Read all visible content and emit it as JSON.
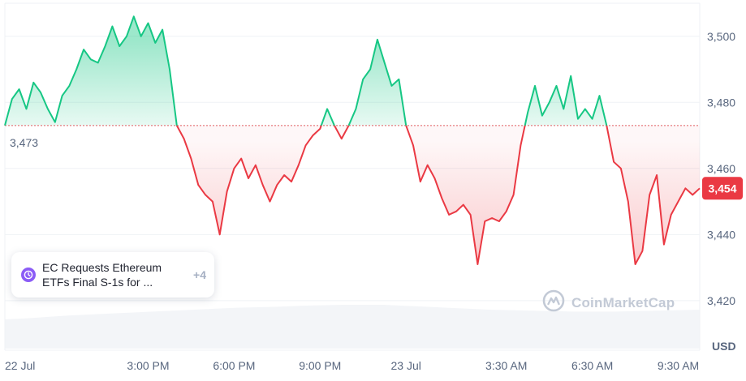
{
  "chart_data": {
    "type": "line",
    "title": "",
    "xlabel": "",
    "ylabel": "USD",
    "baseline": 3473,
    "baseline_label": "3,473",
    "current_value": 3454,
    "current_label": "3,454",
    "ylim": [
      3405,
      3510
    ],
    "y_ticks": [
      {
        "value": 3420,
        "label": "3,420"
      },
      {
        "value": 3440,
        "label": "3,440"
      },
      {
        "value": 3460,
        "label": "3,460"
      },
      {
        "value": 3480,
        "label": "3,480"
      },
      {
        "value": 3500,
        "label": "3,500"
      }
    ],
    "x_range": [
      "2024-07-22T10:00",
      "2024-07-23T10:15"
    ],
    "x_ticks": [
      {
        "value": "2024-07-22T10:00",
        "label": "22 Jul"
      },
      {
        "value": "2024-07-22T15:00",
        "label": "3:00 PM"
      },
      {
        "value": "2024-07-22T18:00",
        "label": "6:00 PM"
      },
      {
        "value": "2024-07-22T21:00",
        "label": "9:00 PM"
      },
      {
        "value": "2024-07-23T00:00",
        "label": "23 Jul"
      },
      {
        "value": "2024-07-23T03:30",
        "label": "3:30 AM"
      },
      {
        "value": "2024-07-23T06:30",
        "label": "6:30 AM"
      },
      {
        "value": "2024-07-23T09:30",
        "label": "9:30 AM"
      }
    ],
    "series": [
      {
        "values": [
          [
            "2024-07-22T10:00",
            3473
          ],
          [
            "2024-07-22T10:15",
            3481
          ],
          [
            "2024-07-22T10:30",
            3484
          ],
          [
            "2024-07-22T10:45",
            3478
          ],
          [
            "2024-07-22T11:00",
            3486
          ],
          [
            "2024-07-22T11:15",
            3483
          ],
          [
            "2024-07-22T11:30",
            3478
          ],
          [
            "2024-07-22T11:45",
            3474
          ],
          [
            "2024-07-22T12:00",
            3482
          ],
          [
            "2024-07-22T12:15",
            3485
          ],
          [
            "2024-07-22T12:30",
            3490
          ],
          [
            "2024-07-22T12:45",
            3496
          ],
          [
            "2024-07-22T13:00",
            3493
          ],
          [
            "2024-07-22T13:15",
            3492
          ],
          [
            "2024-07-22T13:30",
            3497
          ],
          [
            "2024-07-22T13:45",
            3503
          ],
          [
            "2024-07-22T14:00",
            3497
          ],
          [
            "2024-07-22T14:15",
            3500
          ],
          [
            "2024-07-22T14:30",
            3506
          ],
          [
            "2024-07-22T14:45",
            3500
          ],
          [
            "2024-07-22T15:00",
            3504
          ],
          [
            "2024-07-22T15:15",
            3498
          ],
          [
            "2024-07-22T15:30",
            3502
          ],
          [
            "2024-07-22T15:45",
            3490
          ],
          [
            "2024-07-22T16:00",
            3473
          ],
          [
            "2024-07-22T16:15",
            3469
          ],
          [
            "2024-07-22T16:30",
            3463
          ],
          [
            "2024-07-22T16:45",
            3455
          ],
          [
            "2024-07-22T17:00",
            3452
          ],
          [
            "2024-07-22T17:15",
            3450
          ],
          [
            "2024-07-22T17:30",
            3440
          ],
          [
            "2024-07-22T17:45",
            3453
          ],
          [
            "2024-07-22T18:00",
            3460
          ],
          [
            "2024-07-22T18:15",
            3463
          ],
          [
            "2024-07-22T18:30",
            3457
          ],
          [
            "2024-07-22T18:45",
            3461
          ],
          [
            "2024-07-22T19:00",
            3455
          ],
          [
            "2024-07-22T19:15",
            3450
          ],
          [
            "2024-07-22T19:30",
            3455
          ],
          [
            "2024-07-22T19:45",
            3458
          ],
          [
            "2024-07-22T20:00",
            3456
          ],
          [
            "2024-07-22T20:15",
            3461
          ],
          [
            "2024-07-22T20:30",
            3467
          ],
          [
            "2024-07-22T20:45",
            3470
          ],
          [
            "2024-07-22T21:00",
            3472
          ],
          [
            "2024-07-22T21:15",
            3478
          ],
          [
            "2024-07-22T21:30",
            3473
          ],
          [
            "2024-07-22T21:45",
            3469
          ],
          [
            "2024-07-22T22:00",
            3473
          ],
          [
            "2024-07-22T22:15",
            3478
          ],
          [
            "2024-07-22T22:30",
            3487
          ],
          [
            "2024-07-22T22:45",
            3490
          ],
          [
            "2024-07-22T23:00",
            3499
          ],
          [
            "2024-07-22T23:15",
            3492
          ],
          [
            "2024-07-22T23:30",
            3485
          ],
          [
            "2024-07-22T23:45",
            3487
          ],
          [
            "2024-07-23T00:00",
            3473
          ],
          [
            "2024-07-23T00:15",
            3467
          ],
          [
            "2024-07-23T00:30",
            3456
          ],
          [
            "2024-07-23T00:45",
            3461
          ],
          [
            "2024-07-23T01:00",
            3457
          ],
          [
            "2024-07-23T01:15",
            3451
          ],
          [
            "2024-07-23T01:30",
            3446
          ],
          [
            "2024-07-23T01:45",
            3447
          ],
          [
            "2024-07-23T02:00",
            3449
          ],
          [
            "2024-07-23T02:15",
            3446
          ],
          [
            "2024-07-23T02:30",
            3431
          ],
          [
            "2024-07-23T02:45",
            3444
          ],
          [
            "2024-07-23T03:00",
            3445
          ],
          [
            "2024-07-23T03:15",
            3444
          ],
          [
            "2024-07-23T03:30",
            3447
          ],
          [
            "2024-07-23T03:45",
            3452
          ],
          [
            "2024-07-23T04:00",
            3467
          ],
          [
            "2024-07-23T04:15",
            3477
          ],
          [
            "2024-07-23T04:30",
            3485
          ],
          [
            "2024-07-23T04:45",
            3476
          ],
          [
            "2024-07-23T05:00",
            3480
          ],
          [
            "2024-07-23T05:15",
            3485
          ],
          [
            "2024-07-23T05:30",
            3478
          ],
          [
            "2024-07-23T05:45",
            3488
          ],
          [
            "2024-07-23T06:00",
            3475
          ],
          [
            "2024-07-23T06:15",
            3478
          ],
          [
            "2024-07-23T06:30",
            3475
          ],
          [
            "2024-07-23T06:45",
            3482
          ],
          [
            "2024-07-23T07:00",
            3473
          ],
          [
            "2024-07-23T07:15",
            3462
          ],
          [
            "2024-07-23T07:30",
            3460
          ],
          [
            "2024-07-23T07:45",
            3450
          ],
          [
            "2024-07-23T08:00",
            3431
          ],
          [
            "2024-07-23T08:15",
            3435
          ],
          [
            "2024-07-23T08:30",
            3452
          ],
          [
            "2024-07-23T08:45",
            3458
          ],
          [
            "2024-07-23T09:00",
            3437
          ],
          [
            "2024-07-23T09:15",
            3446
          ],
          [
            "2024-07-23T09:30",
            3450
          ],
          [
            "2024-07-23T09:45",
            3454
          ],
          [
            "2024-07-23T10:00",
            3452
          ],
          [
            "2024-07-23T10:15",
            3454
          ]
        ]
      }
    ],
    "volume": [
      0.6,
      0.62,
      0.65,
      0.68,
      0.7,
      0.72,
      0.74,
      0.76,
      0.78,
      0.8,
      0.82,
      0.84,
      0.85,
      0.86,
      0.88,
      0.89,
      0.9,
      0.9,
      0.9,
      0.88,
      0.86,
      0.84,
      0.82,
      0.8,
      0.79,
      0.78,
      0.77,
      0.76,
      0.76,
      0.76,
      0.77,
      0.78,
      0.79,
      0.8
    ],
    "grid": true,
    "up_color": "#16c784",
    "down_color": "#ea3943"
  },
  "news": {
    "line1": "EC Requests Ethereum",
    "line2": "ETFs Final S-1s for ...",
    "more": "+4"
  },
  "watermark": "CoinMarketCap",
  "icons": [
    "clock-icon",
    "coinmarketcap-logo-icon"
  ]
}
